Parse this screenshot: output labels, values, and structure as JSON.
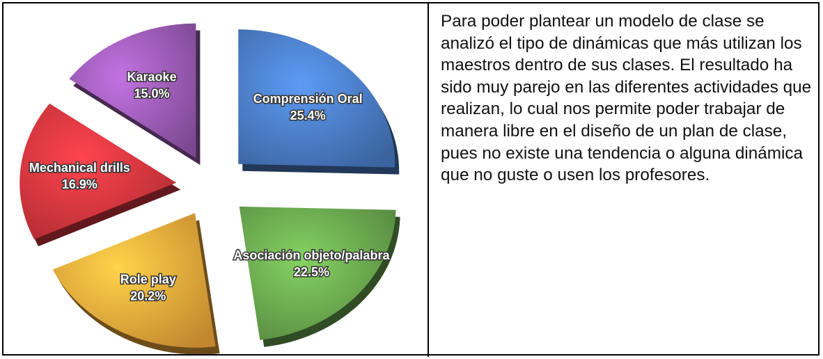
{
  "chart_data": {
    "type": "pie",
    "categories": [
      "Comprensión Oral",
      "Asociación objeto/palabra",
      "Role play",
      "Mechanical drills",
      "Karaoke"
    ],
    "values": [
      25.4,
      22.5,
      20.2,
      16.9,
      15.0
    ],
    "value_labels": [
      "25.4%",
      "22.5%",
      "20.2%",
      "16.9%",
      "15.0%"
    ],
    "colors": [
      "#4a7cc4",
      "#6aa84f",
      "#f2a93b",
      "#d9363e",
      "#9b5bb5"
    ]
  },
  "paragraph": "Para poder plantear un modelo de clase se analizó el tipo de dinámicas que más utilizan los maestros dentro de sus clases. El resultado ha sido muy parejo en las diferentes actividades que realizan, lo cual nos permite poder trabajar de manera libre en el diseño de un plan de clase, pues no existe una tendencia o alguna dinámica que no guste o usen los profesores."
}
